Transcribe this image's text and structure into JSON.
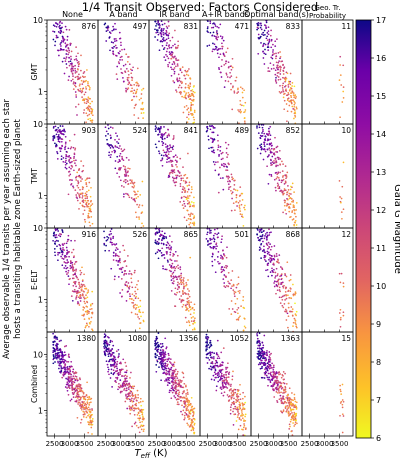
{
  "title": "1/4 Transit Observed: Factors Considered",
  "ylabel_lines": [
    "Average observable 1/4 transits per year assuming each star",
    "hosts a transiting habitable zone Earth-sized planet"
  ],
  "xlabel_main": "T",
  "xlabel_sub": "eff",
  "xlabel_unit": " (K)",
  "colorbar_label": "Gaia G Magnitude",
  "chart_data": {
    "type": "scatter",
    "columns": [
      "None",
      "A band",
      "IR band",
      "A+IR bands",
      "Optimal band(s)",
      "Geo. Tr. Probability"
    ],
    "column_title_lines": [
      [
        "None"
      ],
      [
        "A band"
      ],
      [
        "IR band"
      ],
      [
        "A+IR bands"
      ],
      [
        "Optimal band(s)"
      ],
      [
        "Geo. Tr.",
        "Probability"
      ]
    ],
    "rows": [
      "GMT",
      "TMT",
      "E-ELT",
      "Combined"
    ],
    "counts": [
      [
        "876",
        "497",
        "831",
        "471",
        "833",
        "11"
      ],
      [
        "903",
        "524",
        "841",
        "489",
        "852",
        "10"
      ],
      [
        "916",
        "526",
        "865",
        "501",
        "868",
        "12"
      ],
      [
        "1380",
        "1080",
        "1356",
        "1052",
        "1363",
        "15"
      ]
    ],
    "x_ticks": [
      "2500",
      "3000",
      "3500"
    ],
    "x_tick_values": [
      2500,
      3000,
      3500
    ],
    "xlim": [
      2250,
      3950
    ],
    "y_scale": "log",
    "y_tick_values": [
      1,
      10
    ],
    "y_tick_labels": [
      "1",
      "10"
    ],
    "ylim_rows": [
      [
        0.35,
        10
      ],
      [
        0.35,
        10
      ],
      [
        0.35,
        10
      ],
      [
        0.35,
        25
      ]
    ],
    "colorbar": {
      "min": 6,
      "max": 17,
      "ticks": [
        "6",
        "7",
        "8",
        "9",
        "10",
        "11",
        "12",
        "13",
        "14",
        "15",
        "16",
        "17"
      ],
      "colormap": "plasma_r"
    }
  }
}
